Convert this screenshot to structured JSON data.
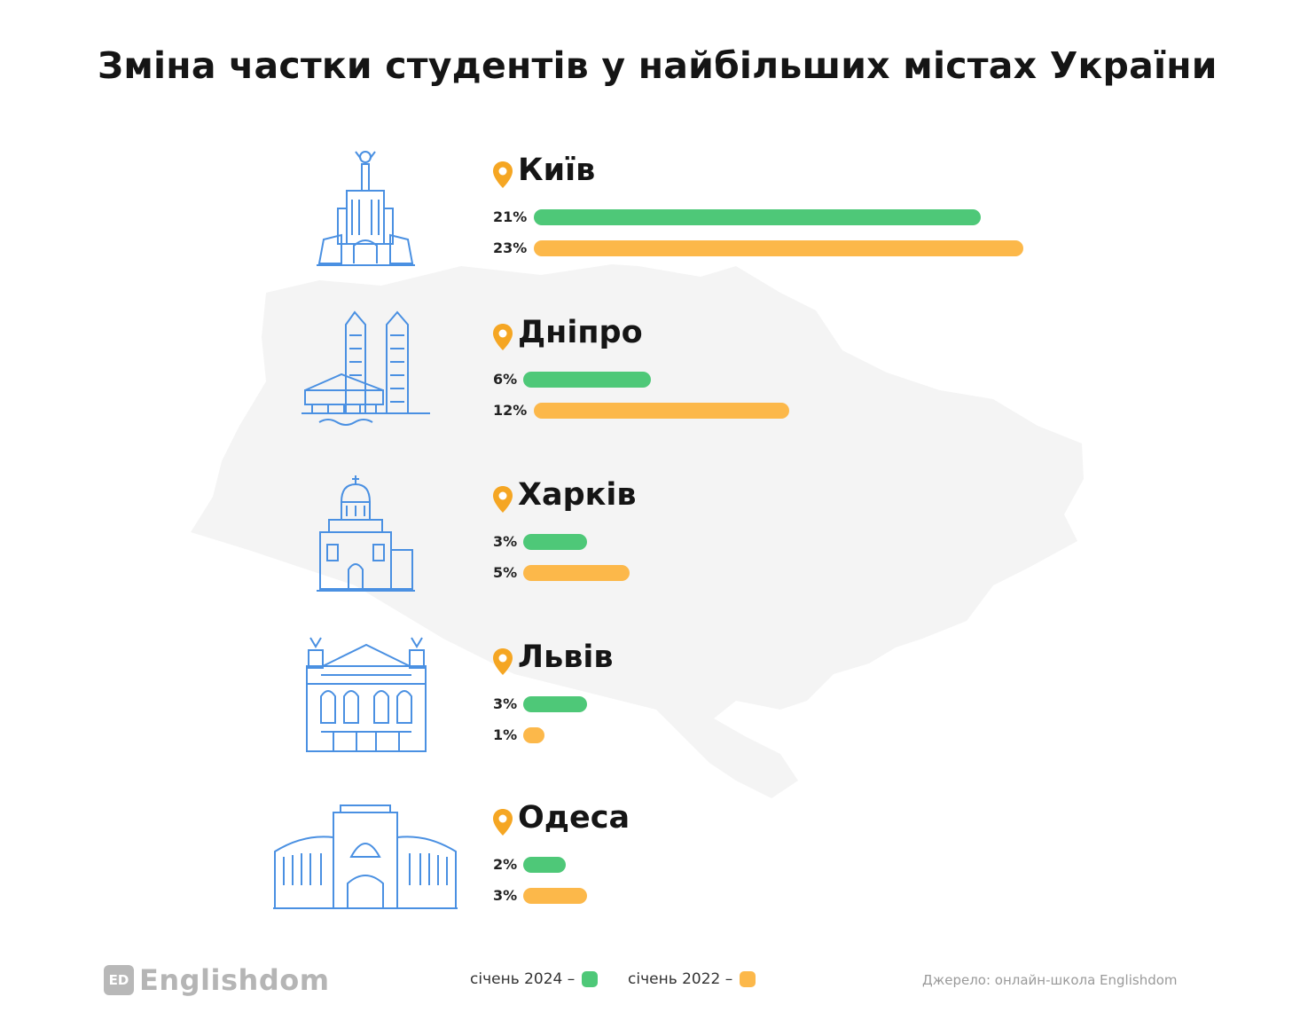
{
  "title": "Зміна частки студентів у найбільших містах України",
  "colors": {
    "jan2024": "#4ec878",
    "jan2022": "#fcb84a",
    "icon": "#4a90e2",
    "pin": "#f5a623",
    "map": "#f4f4f4"
  },
  "chart_data": {
    "type": "bar",
    "orientation": "horizontal",
    "title": "Зміна частки студентів у найбільших містах України",
    "categories": [
      "Київ",
      "Дніпро",
      "Харків",
      "Львів",
      "Одеса"
    ],
    "series": [
      {
        "name": "січень 2024",
        "values": [
          21,
          6,
          3,
          3,
          2
        ],
        "labels": [
          "21%",
          "6%",
          "3%",
          "3%",
          "2%"
        ]
      },
      {
        "name": "січень 2022",
        "values": [
          23,
          12,
          5,
          1,
          3
        ],
        "labels": [
          "23%",
          "12%",
          "5%",
          "1%",
          "3%"
        ]
      }
    ],
    "unit": "%",
    "legend_position": "bottom-center"
  },
  "legend": {
    "jan2024": "січень 2024 –",
    "jan2022": "січень 2022 –"
  },
  "footer": {
    "logo_mark": "ED",
    "logo_text": "Englishdom",
    "source": "Джерело: онлайн-школа Englishdom"
  }
}
